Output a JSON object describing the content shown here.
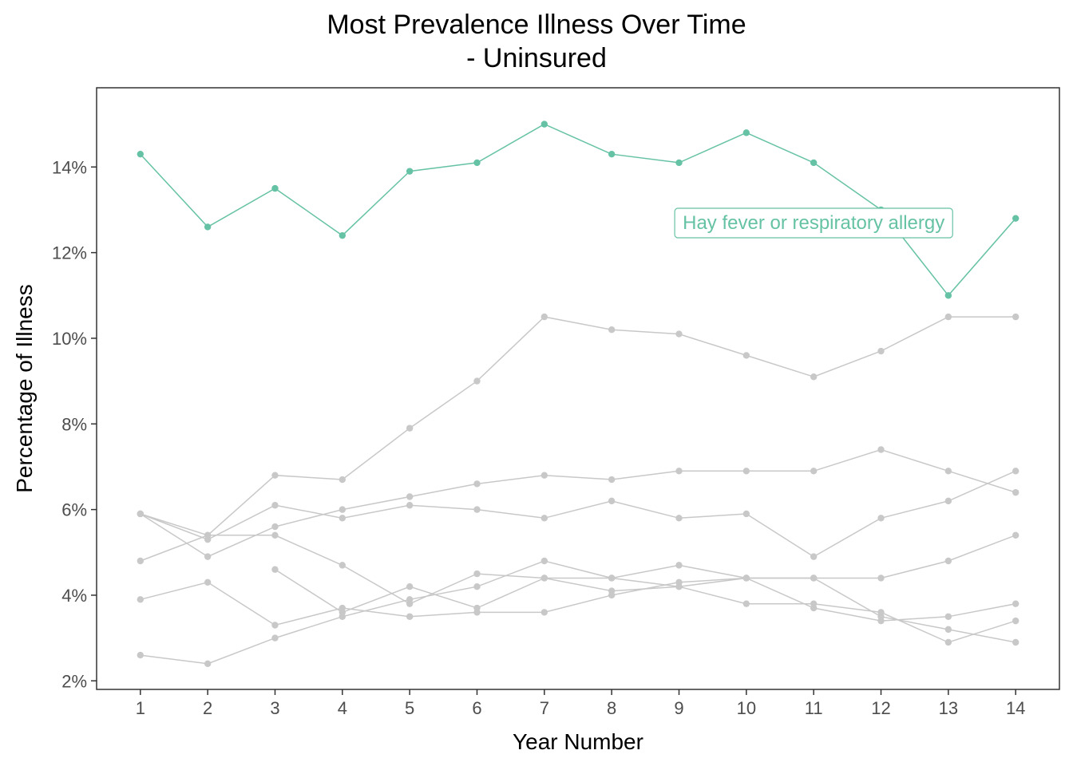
{
  "chart_data": {
    "type": "line",
    "title_line1": "Most Prevalence Illness Over Time",
    "title_line2": "- Uninsured",
    "xlabel": "Year Number",
    "ylabel": "Percentage of Illness",
    "xlim": [
      0.35,
      14.65
    ],
    "ylim": [
      1.8,
      15.85
    ],
    "x_ticks": [
      1,
      2,
      3,
      4,
      5,
      6,
      7,
      8,
      9,
      10,
      11,
      12,
      13,
      14
    ],
    "y_ticks": [
      2,
      4,
      6,
      8,
      10,
      12,
      14
    ],
    "y_tick_labels": [
      "2%",
      "4%",
      "6%",
      "8%",
      "10%",
      "12%",
      "14%"
    ],
    "grid": false,
    "colors": {
      "highlight": "#66c2a5",
      "background_series": "#c8c8c8",
      "axis": "#333333",
      "tick_text": "#4d4d4d"
    },
    "highlight_label": "Hay fever or respiratory allergy",
    "highlight": {
      "name": "Hay fever or respiratory allergy",
      "x": [
        1,
        2,
        3,
        4,
        5,
        6,
        7,
        8,
        9,
        10,
        11,
        12,
        13,
        14
      ],
      "y": [
        14.3,
        12.6,
        13.5,
        12.4,
        13.9,
        14.1,
        15.0,
        14.3,
        14.1,
        14.8,
        14.1,
        13.0,
        11.0,
        12.8
      ]
    },
    "series": [
      {
        "x": [
          1,
          2,
          3,
          4,
          5,
          6,
          7,
          8,
          9,
          10,
          11,
          12,
          13,
          14
        ],
        "y": [
          4.8,
          5.4,
          6.8,
          6.7,
          7.9,
          9.0,
          10.5,
          10.2,
          10.1,
          9.6,
          9.1,
          9.7,
          10.5,
          10.5
        ]
      },
      {
        "x": [
          1,
          2,
          3,
          4,
          5,
          6,
          7,
          8,
          9,
          10,
          11,
          12,
          13,
          14
        ],
        "y": [
          5.9,
          5.3,
          6.1,
          5.8,
          6.1,
          6.0,
          5.8,
          6.2,
          5.8,
          5.9,
          4.9,
          5.8,
          6.2,
          6.9
        ]
      },
      {
        "x": [
          1,
          2,
          3,
          4,
          5,
          6,
          7,
          8,
          9,
          10,
          11,
          12,
          13,
          14
        ],
        "y": [
          5.9,
          4.9,
          5.6,
          6.0,
          6.3,
          6.6,
          6.8,
          6.7,
          6.9,
          6.9,
          6.9,
          7.4,
          6.9,
          6.4
        ]
      },
      {
        "x": [
          1,
          2,
          3,
          4,
          5,
          6,
          7,
          8,
          9,
          10,
          11,
          12,
          13,
          14
        ],
        "y": [
          3.9,
          4.3,
          3.3,
          3.7,
          3.5,
          3.6,
          3.6,
          4.0,
          4.3,
          4.4,
          4.4,
          4.4,
          4.8,
          5.4
        ]
      },
      {
        "x": [
          1,
          2,
          3,
          4,
          5,
          6,
          7,
          8,
          9,
          10,
          11,
          12,
          13,
          14
        ],
        "y": [
          5.9,
          5.4,
          5.4,
          4.7,
          3.8,
          4.5,
          4.4,
          4.4,
          4.2,
          4.4,
          4.4,
          3.5,
          3.2,
          2.9
        ]
      },
      {
        "x": [
          1,
          2,
          3,
          4,
          5,
          6,
          7,
          8,
          9,
          10,
          11,
          12,
          13,
          14
        ],
        "y": [
          2.6,
          2.4,
          3.0,
          3.5,
          3.9,
          4.2,
          4.8,
          4.4,
          4.7,
          4.4,
          3.7,
          3.4,
          3.5,
          3.8
        ]
      },
      {
        "x": [
          3,
          4,
          5,
          6,
          7,
          8,
          9,
          10,
          11,
          12,
          13,
          14
        ],
        "y": [
          4.6,
          3.6,
          4.2,
          3.7,
          4.4,
          4.1,
          4.2,
          3.8,
          3.8,
          3.6,
          2.9,
          3.4
        ]
      }
    ]
  }
}
